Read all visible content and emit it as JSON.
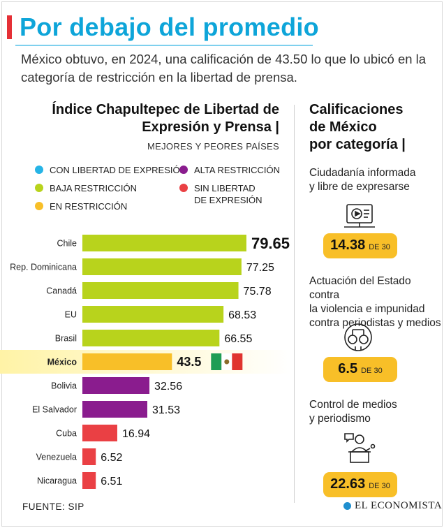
{
  "header": {
    "title": "Por debajo del promedio",
    "subtitle": "México obtuvo, en 2024, una calificación de 43.50 lo que lo ubicó en la categoría de restricción en la libertad de prensa."
  },
  "chart_data": {
    "type": "bar",
    "orientation": "horizontal",
    "title": "Índice Chapultepec de Libertad de Expresión y Prensa |",
    "subtitle": "MEJORES Y PEORES PAÍSES",
    "xlim": [
      0,
      100
    ],
    "categories": [
      "Chile",
      "Rep. Dominicana",
      "Canadá",
      "EU",
      "Brasil",
      "México",
      "Bolivia",
      "El Salvador",
      "Cuba",
      "Venezuela",
      "Nicaragua"
    ],
    "values": [
      79.65,
      77.25,
      75.78,
      68.53,
      66.55,
      43.5,
      32.56,
      31.53,
      16.94,
      6.52,
      6.51
    ],
    "value_labels": [
      "79.65",
      "77.25",
      "75.78",
      "68.53",
      "66.55",
      "43.5",
      "32.56",
      "31.53",
      "16.94",
      "6.52",
      "6.51"
    ],
    "categories_assigned": [
      "baja",
      "baja",
      "baja",
      "baja",
      "baja",
      "en",
      "alta",
      "alta",
      "sin",
      "sin",
      "sin"
    ],
    "highlight": "México",
    "legend": [
      {
        "key": "con",
        "label": "CON LIBERTAD DE EXPRESIÓN",
        "color": "#26b4e6"
      },
      {
        "key": "baja",
        "label": "BAJA RESTRICCIÓN",
        "color": "#b8d31c"
      },
      {
        "key": "en",
        "label": "EN RESTRICCIÓN",
        "color": "#f8bf28"
      },
      {
        "key": "alta",
        "label": "ALTA RESTRICCIÓN",
        "color": "#8a1c8e"
      },
      {
        "key": "sin",
        "label": "SIN LIBERTAD DE EXPRESIÓN",
        "label_lines": [
          "SIN LIBERTAD",
          "DE EXPRESIÓN"
        ],
        "color": "#ea4044"
      }
    ]
  },
  "mexico_scores": {
    "title_lines": [
      "Calificaciones",
      "de México",
      "por categoría |"
    ],
    "items": [
      {
        "label": "Ciudadanía informada y libre de expresarse",
        "lines": [
          "Ciudadanía informada",
          "y libre de expresarse"
        ],
        "value": "14.38",
        "of": "DE 30",
        "icon": "media-screen-icon"
      },
      {
        "label": "Actuación del Estado contra la violencia e impunidad contra periodistas y medios",
        "lines": [
          "Actuación del Estado contra",
          "la violencia e impunidad",
          "contra periodistas y medios"
        ],
        "value": "6.5",
        "of": "DE 30",
        "icon": "handcuffs-icon"
      },
      {
        "label": "Control de medios y periodismo",
        "lines": [
          "Control de medios",
          "y periodismo"
        ],
        "value": "22.63",
        "of": "DE 30",
        "icon": "speaker-podium-icon"
      }
    ]
  },
  "footer": {
    "source": "FUENTE: SIP",
    "brand": "EL ECONOMISTA"
  },
  "colors": {
    "title": "#0ea5d9",
    "accent": "#e53036",
    "highlight_band": "#fff3a6",
    "pill": "#f8bf28",
    "flag_green": "#1f9d55",
    "flag_red": "#e0342f"
  }
}
